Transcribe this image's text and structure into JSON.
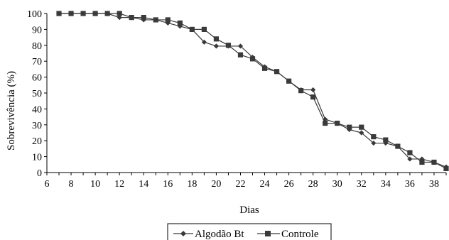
{
  "chart_data": {
    "type": "line",
    "xlabel": "Dias",
    "ylabel": "Sobrevivência (%)",
    "xlim": [
      6,
      39
    ],
    "ylim": [
      0,
      100
    ],
    "x_ticks": [
      6,
      8,
      10,
      12,
      14,
      16,
      18,
      20,
      22,
      24,
      26,
      28,
      30,
      32,
      34,
      36,
      38
    ],
    "y_ticks": [
      0,
      10,
      20,
      30,
      40,
      50,
      60,
      70,
      80,
      90,
      100
    ],
    "grid": false,
    "legend_position": "bottom",
    "series": [
      {
        "name": "Algodão Bt",
        "marker": "diamond",
        "color": "#3a3a3a",
        "x": [
          7,
          8,
          9,
          10,
          11,
          12,
          13,
          14,
          15,
          16,
          17,
          18,
          19,
          20,
          21,
          22,
          23,
          24,
          25,
          26,
          27,
          28,
          29,
          30,
          31,
          32,
          33,
          34,
          35,
          36,
          37,
          38,
          39
        ],
        "y": [
          100,
          100,
          100,
          100,
          100,
          97.5,
          97.5,
          96,
          96,
          94,
          92,
          90,
          82,
          79.5,
          79.5,
          79.5,
          72.5,
          66.5,
          63.5,
          57.5,
          52,
          52,
          33.5,
          31,
          27,
          25,
          18.5,
          18.5,
          16.5,
          8.5,
          8.5,
          6.5,
          3.5
        ]
      },
      {
        "name": "Controle",
        "marker": "square",
        "color": "#3a3a3a",
        "x": [
          7,
          8,
          9,
          10,
          11,
          12,
          13,
          14,
          15,
          16,
          17,
          18,
          19,
          20,
          21,
          22,
          23,
          24,
          25,
          26,
          27,
          28,
          29,
          30,
          31,
          32,
          33,
          34,
          35,
          36,
          37,
          38,
          39
        ],
        "y": [
          100,
          100,
          100,
          100,
          100,
          100,
          97.5,
          97.5,
          96,
          96,
          94,
          90,
          90,
          84,
          80,
          74,
          71.5,
          65.5,
          63.5,
          57.5,
          51.5,
          47.5,
          31,
          31,
          28.5,
          28.5,
          22.5,
          20.5,
          16.5,
          12.5,
          6.5,
          6.5,
          2.5
        ]
      }
    ]
  }
}
